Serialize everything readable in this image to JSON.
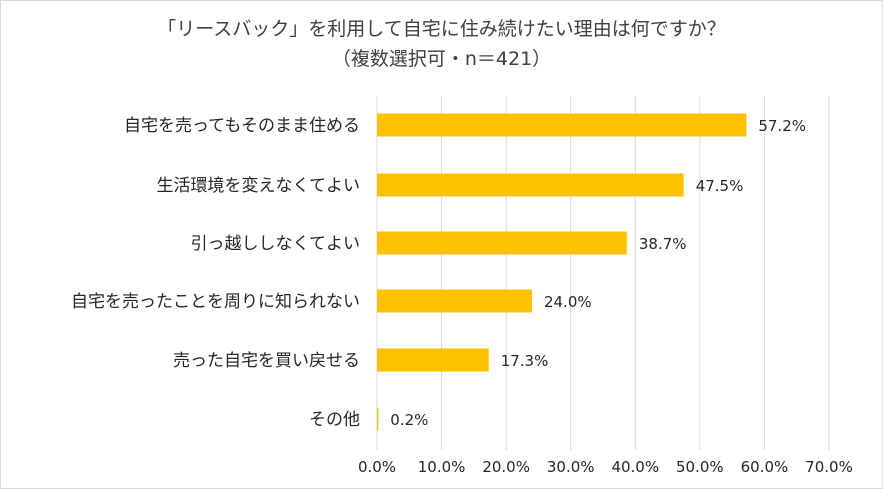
{
  "chart_data": {
    "type": "bar",
    "orientation": "horizontal",
    "title": "「リースバック」を利用して自宅に住み続けたい理由は何ですか？",
    "subtitle": "（複数選択可・n＝421）",
    "categories": [
      "自宅を売ってもそのまま住める",
      "生活環境を変えなくてよい",
      "引っ越ししなくてよい",
      "自宅を売ったことを周りに知られない",
      "売った自宅を買い戻せる",
      "その他"
    ],
    "values": [
      57.2,
      47.5,
      38.7,
      24.0,
      17.3,
      0.2
    ],
    "value_labels": [
      "57.2%",
      "47.5%",
      "38.7%",
      "24.0%",
      "17.3%",
      "0.2%"
    ],
    "xlim": [
      0,
      70
    ],
    "x_ticks": [
      "0.0%",
      "10.0%",
      "20.0%",
      "30.0%",
      "40.0%",
      "50.0%",
      "60.0%",
      "70.0%"
    ],
    "grid": true,
    "legend": "none",
    "bar_color": "#FFC000",
    "grid_color": "#d9d9d9"
  }
}
